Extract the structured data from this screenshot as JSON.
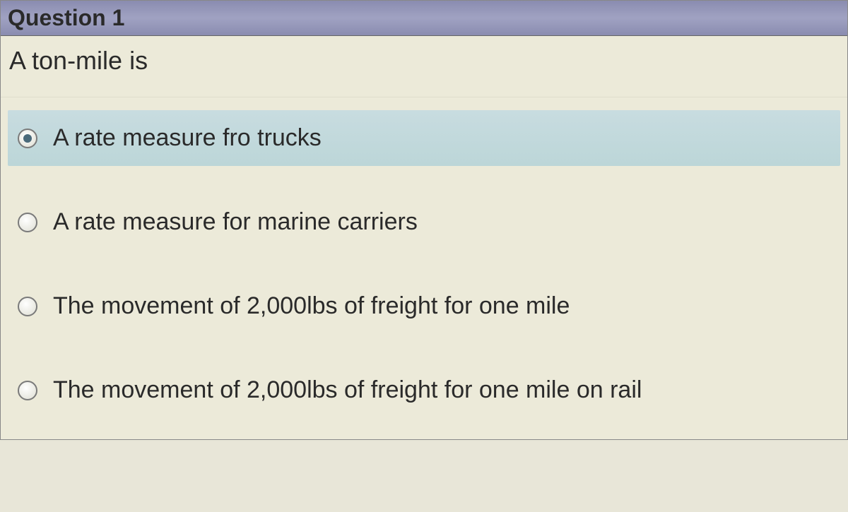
{
  "question": {
    "header": "Question 1",
    "prompt": "A ton-mile is",
    "selected_index": 0,
    "options": [
      {
        "label": "A rate measure fro trucks"
      },
      {
        "label": "A rate measure for marine carriers"
      },
      {
        "label": "The movement of 2,000lbs of freight for one mile"
      },
      {
        "label": "The movement of 2,000lbs of freight for one mile on rail"
      }
    ]
  },
  "colors": {
    "header_bg": "#8a8cb0",
    "body_bg": "#ecead9",
    "selected_bg": "#bcd6d8",
    "text": "#2a2a2a"
  }
}
